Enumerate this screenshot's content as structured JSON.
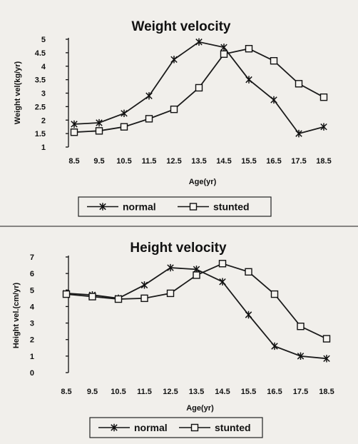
{
  "chart_data": [
    {
      "type": "line",
      "title": "Weight velocity",
      "xlabel": "Age(yr)",
      "ylabel": "Weight vel(kg/yr)",
      "categories": [
        "8.5",
        "9.5",
        "10.5",
        "11.5",
        "12.5",
        "13.5",
        "14.5",
        "15.5",
        "16.5",
        "17.5",
        "18.5"
      ],
      "yticks": [
        "1",
        "1.5",
        "2",
        "2.5",
        "3",
        "3.5",
        "4",
        "4.5",
        "5"
      ],
      "ylim": [
        1,
        5
      ],
      "grid": false,
      "legend_position": "bottom",
      "series": [
        {
          "name": "normal",
          "marker": "x-star",
          "values": [
            1.85,
            1.9,
            2.25,
            2.9,
            4.25,
            4.9,
            4.7,
            3.5,
            2.75,
            1.5,
            1.75
          ]
        },
        {
          "name": "stunted",
          "marker": "square",
          "values": [
            1.55,
            1.6,
            1.75,
            2.05,
            2.4,
            3.2,
            4.45,
            4.65,
            4.2,
            3.35,
            2.85
          ]
        }
      ]
    },
    {
      "type": "line",
      "title": "Height velocity",
      "xlabel": "Age(yr)",
      "ylabel": "Height vel.(cm/yr)",
      "categories": [
        "8.5",
        "9.5",
        "10.5",
        "11.5",
        "12.5",
        "13.5",
        "14.5",
        "15.5",
        "16.5",
        "17.5",
        "18.5"
      ],
      "yticks": [
        "0",
        "1",
        "2",
        "3",
        "4",
        "5",
        "6",
        "7"
      ],
      "ylim": [
        0,
        7
      ],
      "grid": false,
      "legend_position": "bottom",
      "series": [
        {
          "name": "normal",
          "marker": "x-star",
          "values": [
            4.8,
            4.7,
            4.5,
            5.3,
            6.35,
            6.25,
            5.5,
            3.5,
            1.6,
            1.0,
            0.85
          ]
        },
        {
          "name": "stunted",
          "marker": "square",
          "values": [
            4.75,
            4.6,
            4.45,
            4.5,
            4.8,
            5.9,
            6.6,
            6.1,
            4.75,
            2.8,
            2.05
          ]
        }
      ]
    }
  ],
  "colors": {
    "line": "#1a1a1a",
    "background": "#f1efeb"
  }
}
